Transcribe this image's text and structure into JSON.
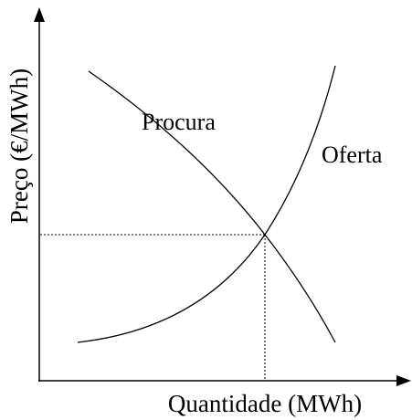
{
  "y_axis_label": "Preço (€/MWh)",
  "x_axis_label": "Quantidade (MWh)",
  "curves": [
    {
      "label": "Procura"
    },
    {
      "label": "Oferta"
    }
  ]
}
